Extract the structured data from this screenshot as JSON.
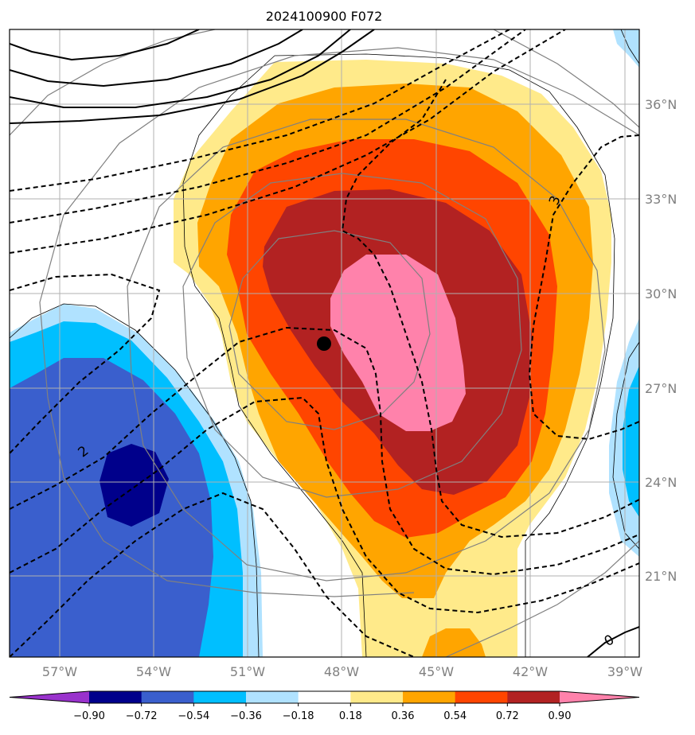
{
  "figure": {
    "title": "2024100900 F072"
  },
  "map": {
    "lat_labels": [
      "36°N",
      "33°N",
      "30°N",
      "27°N",
      "24°N",
      "21°N"
    ],
    "lon_labels": [
      "57°W",
      "54°W",
      "51°W",
      "48°W",
      "45°W",
      "42°W",
      "39°W"
    ],
    "contour_labels": [
      "3",
      "2",
      "0"
    ],
    "marker": {
      "lon": -48.8,
      "lat": 28.4
    }
  },
  "colorbar": {
    "ticks": [
      "−0.90",
      "−0.72",
      "−0.54",
      "−0.36",
      "−0.18",
      "0.18",
      "0.36",
      "0.54",
      "0.72",
      "0.90"
    ],
    "colors": [
      "#9932cc",
      "#00008b",
      "#3a5fcd",
      "#00bfff",
      "#b0e2ff",
      "#ffffff",
      "#ffea8a",
      "#ffa500",
      "#ff4500",
      "#b22222",
      "#ff82ab"
    ]
  }
}
